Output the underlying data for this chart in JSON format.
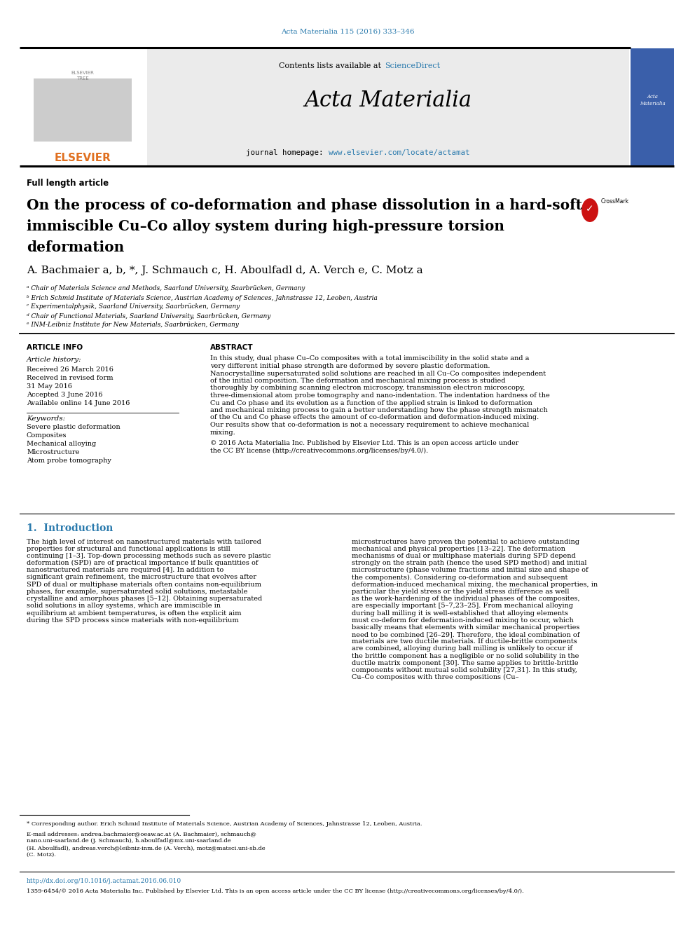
{
  "page_bg": "#ffffff",
  "top_ref": "Acta Materialia 115 (2016) 333–346",
  "top_ref_color": "#2a7aad",
  "header_bg": "#ebebeb",
  "header_contents_text": "Contents lists available at ",
  "header_sd": "ScienceDirect",
  "header_sd_color": "#2a7aad",
  "header_title": "Acta Materialia",
  "header_hp_text": "journal homepage: ",
  "header_hp_url": "www.elsevier.com/locate/actamat",
  "header_url_color": "#2a7aad",
  "elsevier_text": "ELSEVIER",
  "elsevier_color": "#e07020",
  "article_type": "Full length article",
  "title_line1": "On the process of co-deformation and phase dissolution in a hard-soft",
  "title_line2": "immiscible Cu–Co alloy system during high-pressure torsion",
  "title_line3": "deformation",
  "authors_line": "A. Bachmaier a, b, *, J. Schmauch c, H. Aboulfadl d, A. Verch e, C. Motz a",
  "affil_a": "ᵃ Chair of Materials Science and Methods, Saarland University, Saarbrücken, Germany",
  "affil_b": "ᵇ Erich Schmid Institute of Materials Science, Austrian Academy of Sciences, Jahnstrasse 12, Leoben, Austria",
  "affil_c": "ᶜ Experimentalphysik, Saarland University, Saarbrücken, Germany",
  "affil_d": "ᵈ Chair of Functional Materials, Saarland University, Saarbrücken, Germany",
  "affil_e": "ᵉ INM-Leibniz Institute for New Materials, Saarbrücken, Germany",
  "art_info_hdr": "ARTICLE INFO",
  "abstract_hdr": "ABSTRACT",
  "art_history_lbl": "Article history:",
  "received": "Received 26 March 2016",
  "revised_lbl": "Received in revised form",
  "revised_date": "31 May 2016",
  "accepted": "Accepted 3 June 2016",
  "available": "Available online 14 June 2016",
  "keywords_lbl": "Keywords:",
  "keywords": [
    "Severe plastic deformation",
    "Composites",
    "Mechanical alloying",
    "Microstructure",
    "Atom probe tomography"
  ],
  "abstract": "In this study, dual phase Cu–Co composites with a total immiscibility in the solid state and a very different initial phase strength are deformed by severe plastic deformation. Nanocrystalline supersaturated solid solutions are reached in all Cu–Co composites independent of the initial composition. The deformation and mechanical mixing process is studied thoroughly by combining scanning electron microscopy, transmission electron microscopy, three-dimensional atom probe tomography and nano-indentation. The indentation hardness of the Cu and Co phase and its evolution as a function of the applied strain is linked to deformation and mechanical mixing process to gain a better understanding how the phase strength mismatch of the Cu and Co phase effects the amount of co-deformation and deformation-induced mixing. Our results show that co-deformation is not a necessary requirement to achieve mechanical mixing.",
  "copyright": "© 2016 Acta Materialia Inc. Published by Elsevier Ltd. This is an open access article under the CC BY license (http://creativecommons.org/licenses/by/4.0/).",
  "intro_hdr": "1.  Introduction",
  "intro_hdr_color": "#2a7aad",
  "intro_p1": "The high level of interest on nanostructured materials with tailored properties for structural and functional applications is still continuing [1–3]. Top-down processing methods such as severe plastic deformation (SPD) are of practical importance if bulk quantities of nanostructured materials are required [4]. In addition to significant grain refinement, the microstructure that evolves after SPD of dual or multiphase materials often contains non-equilibrium phases, for example, supersaturated solid solutions, metastable crystalline and amorphous phases [5–12]. Obtaining supersaturated solid solutions in alloy systems, which are immiscible in equilibrium at ambient temperatures, is often the explicit aim during the SPD process since materials with non-equilibrium",
  "intro_p2a": "microstructures have proven the potential to achieve outstanding mechanical and physical properties [13–22].",
  "intro_p2b": "    The deformation mechanisms of dual or multiphase materials during SPD depend strongly on the strain path (hence the used SPD method) and initial microstructure (phase volume fractions and initial size and shape of the components). Considering co-deformation and subsequent deformation-induced mechanical mixing, the mechanical properties, in particular the yield stress or the yield stress difference as well as the work-hardening of the individual phases of the composites, are especially important [5–7,23–25]. From mechanical alloying during ball milling it is well-established that alloying elements must co-deform for deformation-induced mixing to occur, which basically means that elements with similar mechanical properties need to be combined [26–29]. Therefore, the ideal combination of materials are two ductile materials. If ductile-brittle components are combined, alloying during ball milling is unlikely to occur if the brittle component has a negligible or no solid solubility in the ductile matrix component [30]. The same applies to brittle-brittle components without mutual solid solubility [27,31].",
  "intro_p2c": "    In this study, Cu–Co composites with three compositions (Cu–",
  "footnote1": "* Corresponding author. Erich Schmid Institute of Materials Science, Austrian Academy of Sciences, Jahnstrasse 12, Leoben, Austria.",
  "footnote2a": "E-mail addresses: andrea.bachmaier@oeaw.ac.at (A. Bachmaier), schmauch@",
  "footnote2b": "nano.uni-saarland.de (J. Schmauch), h.aboulfadl@mx.uni-saarland.de",
  "footnote2c": "(H. Aboulfadl), andreas.verch@leibniz-inm.de (A. Verch), motz@matsci.uni-sb.de",
  "footnote2d": "(C. Motz).",
  "doi": "http://dx.doi.org/10.1016/j.actamat.2016.06.010",
  "issn": "1359-6454/© 2016 Acta Materialia Inc. Published by Elsevier Ltd. This is an open access article under the CC BY license (http://creativecommons.org/licenses/by/4.0/).",
  "link_color": "#2a7aad",
  "crossmark_color": "#cc1111"
}
